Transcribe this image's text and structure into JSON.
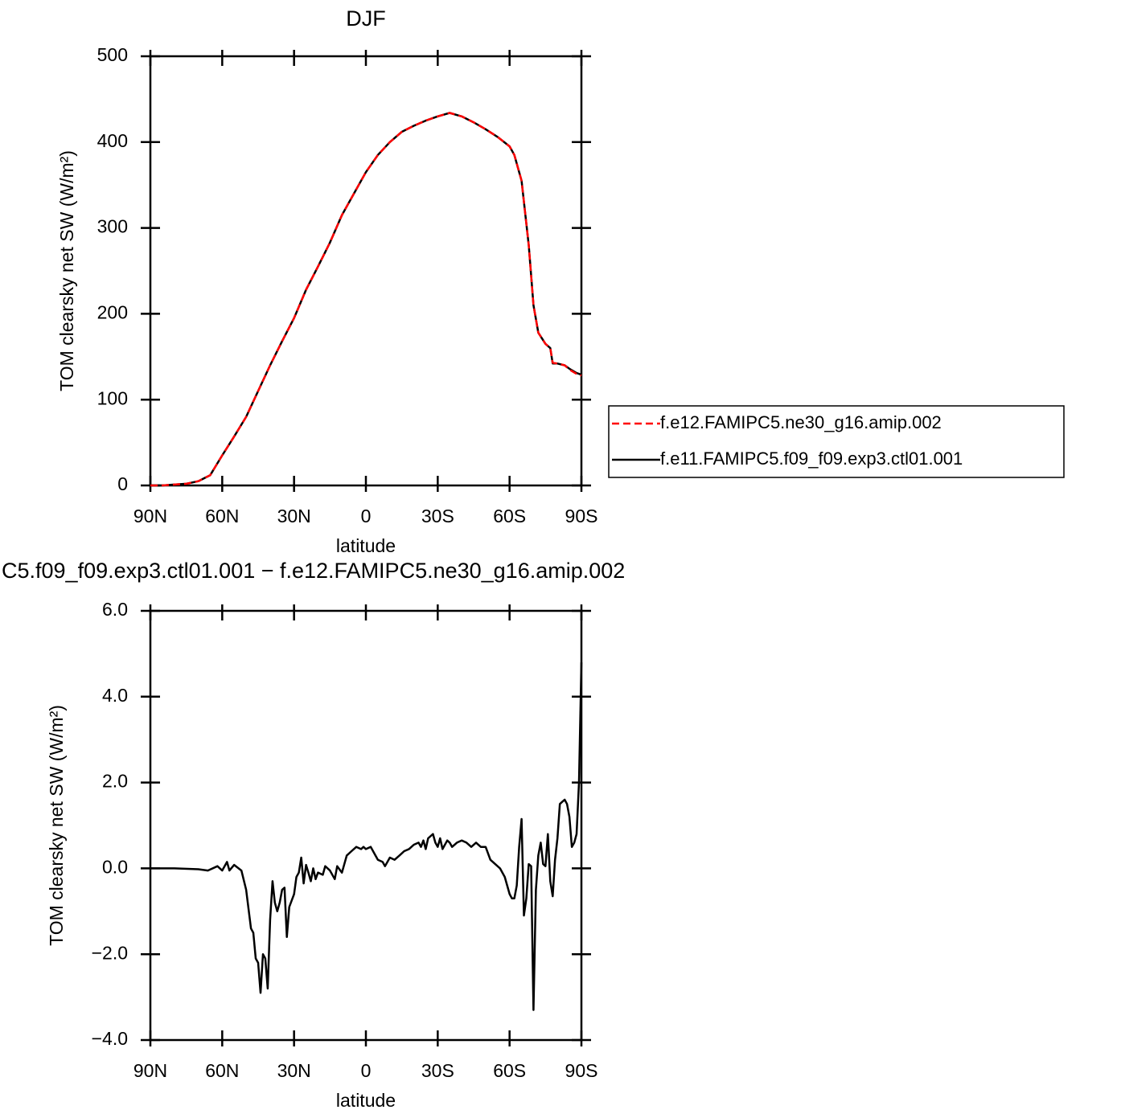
{
  "chart_data": [
    {
      "type": "line",
      "title": "DJF",
      "xlabel": "latitude",
      "ylabel": "TOM clearsky net SW (W/m²)",
      "x": [
        90,
        85,
        80,
        75,
        70,
        65,
        60,
        55,
        50,
        45,
        40,
        35,
        30,
        25,
        20,
        15,
        10,
        5,
        0,
        -5,
        -10,
        -15,
        -20,
        -25,
        -30,
        -35,
        -40,
        -45,
        -50,
        -55,
        -60,
        -62,
        -65,
        -68,
        -70,
        -72,
        -75,
        -77,
        -78,
        -80,
        -83,
        -85,
        -88,
        -90
      ],
      "series": [
        {
          "name": "f.e12.FAMIPC5.ne30_g16.amip.002",
          "color": "#ff0000",
          "linestyle": "dashed",
          "values": [
            0,
            0,
            1,
            2,
            5,
            12,
            35,
            57,
            80,
            110,
            140,
            168,
            195,
            228,
            255,
            283,
            315,
            340,
            365,
            385,
            400,
            412,
            419,
            425,
            430,
            434,
            430,
            423,
            415,
            406,
            395,
            385,
            355,
            280,
            210,
            178,
            165,
            160,
            143,
            142,
            140,
            135,
            130,
            128
          ]
        },
        {
          "name": "f.e11.FAMIPC5.f09_f09.exp3.ctl01.001",
          "color": "#000000",
          "linestyle": "solid",
          "values": [
            0,
            0,
            1,
            2,
            5,
            12,
            35,
            57,
            80,
            110,
            140,
            168,
            195,
            228,
            255,
            283,
            315,
            340,
            365,
            385,
            400,
            412,
            419,
            425,
            430,
            434,
            430,
            423,
            415,
            406,
            395,
            385,
            355,
            280,
            210,
            178,
            165,
            160,
            142,
            142,
            140,
            136,
            131,
            129
          ]
        }
      ],
      "xlim": [
        90,
        -90
      ],
      "xticks": [
        {
          "value": 90,
          "label": "90N"
        },
        {
          "value": 60,
          "label": "60N"
        },
        {
          "value": 30,
          "label": "30N"
        },
        0,
        {
          "value": -30,
          "label": "30S"
        },
        {
          "value": -60,
          "label": "60S"
        },
        {
          "value": -90,
          "label": "90S"
        }
      ],
      "ylim": [
        0,
        500
      ],
      "yticks": [
        0,
        100,
        200,
        300,
        400,
        500
      ],
      "legend": "right"
    },
    {
      "type": "line",
      "title": "C5.f09_f09.exp3.ctl01.001 − f.e12.FAMIPC5.ne30_g16.amip.002",
      "xlabel": "latitude",
      "ylabel": "TOM clearsky net SW (W/m²)",
      "x": [
        90,
        80,
        70,
        66,
        62,
        60,
        58,
        57,
        55,
        52,
        50,
        48,
        47,
        46,
        45,
        44,
        43,
        42,
        41,
        40,
        39,
        38,
        37,
        36,
        35,
        34,
        33,
        32,
        30,
        29,
        28,
        27,
        26,
        25,
        24,
        23,
        22,
        21,
        20,
        18,
        17,
        15,
        13,
        12,
        10,
        8,
        6,
        4,
        2,
        1,
        0,
        -2,
        -4,
        -5,
        -7,
        -8,
        -10,
        -12,
        -14,
        -16,
        -18,
        -20,
        -22,
        -23,
        -24,
        -25,
        -26,
        -28,
        -29,
        -30,
        -31,
        -32,
        -34,
        -35,
        -36,
        -38,
        -40,
        -42,
        -44,
        -46,
        -48,
        -50,
        -52,
        -54,
        -56,
        -58,
        -60,
        -61,
        -62,
        -63,
        -64,
        -65,
        -66,
        -67,
        -68,
        -69,
        -70,
        -71,
        -72,
        -73,
        -74,
        -75,
        -76,
        -77,
        -78,
        -79,
        -80,
        -81,
        -82,
        -83,
        -84,
        -85,
        -86,
        -87,
        -88,
        -89,
        -90
      ],
      "color": "#000000",
      "values": [
        0,
        0,
        -0.02,
        -0.05,
        0.05,
        -0.05,
        0.15,
        -0.05,
        0.08,
        -0.05,
        -0.5,
        -1.4,
        -1.5,
        -2.1,
        -2.2,
        -2.9,
        -2.0,
        -2.1,
        -2.8,
        -1.2,
        -0.3,
        -0.8,
        -1.0,
        -0.8,
        -0.5,
        -0.45,
        -1.6,
        -0.9,
        -0.6,
        -0.2,
        -0.1,
        0.25,
        -0.35,
        0.08,
        -0.1,
        -0.3,
        0.0,
        -0.25,
        -0.1,
        -0.15,
        0.05,
        -0.05,
        -0.25,
        0.05,
        -0.1,
        0.3,
        0.4,
        0.5,
        0.45,
        0.5,
        0.45,
        0.5,
        0.3,
        0.2,
        0.15,
        0.05,
        0.25,
        0.2,
        0.3,
        0.4,
        0.45,
        0.55,
        0.6,
        0.5,
        0.65,
        0.45,
        0.7,
        0.8,
        0.6,
        0.5,
        0.7,
        0.45,
        0.65,
        0.6,
        0.5,
        0.6,
        0.65,
        0.6,
        0.5,
        0.6,
        0.5,
        0.5,
        0.2,
        0.1,
        0.0,
        -0.2,
        -0.6,
        -0.7,
        -0.7,
        -0.4,
        0.5,
        1.15,
        -1.1,
        -0.7,
        0.1,
        0.05,
        -3.3,
        -0.5,
        0.3,
        0.6,
        0.1,
        0.05,
        0.8,
        -0.3,
        -0.65,
        0.2,
        0.7,
        1.5,
        1.55,
        1.6,
        1.5,
        1.2,
        0.5,
        0.6,
        0.8,
        2.0,
        4.8
      ],
      "xlim": [
        90,
        -90
      ],
      "xticks": [
        {
          "value": 90,
          "label": "90N"
        },
        {
          "value": 60,
          "label": "60N"
        },
        {
          "value": 30,
          "label": "30N"
        },
        0,
        {
          "value": -30,
          "label": "30S"
        },
        {
          "value": -60,
          "label": "60S"
        },
        {
          "value": -90,
          "label": "90S"
        }
      ],
      "ylim": [
        -4,
        6
      ],
      "yticks": [
        {
          "value": -4,
          "label": "−4.0"
        },
        {
          "value": -2,
          "label": "−2.0"
        },
        {
          "value": 0,
          "label": "0.0"
        },
        {
          "value": 2,
          "label": "2.0"
        },
        {
          "value": 4,
          "label": "4.0"
        },
        {
          "value": 6,
          "label": "6.0"
        }
      ]
    }
  ]
}
